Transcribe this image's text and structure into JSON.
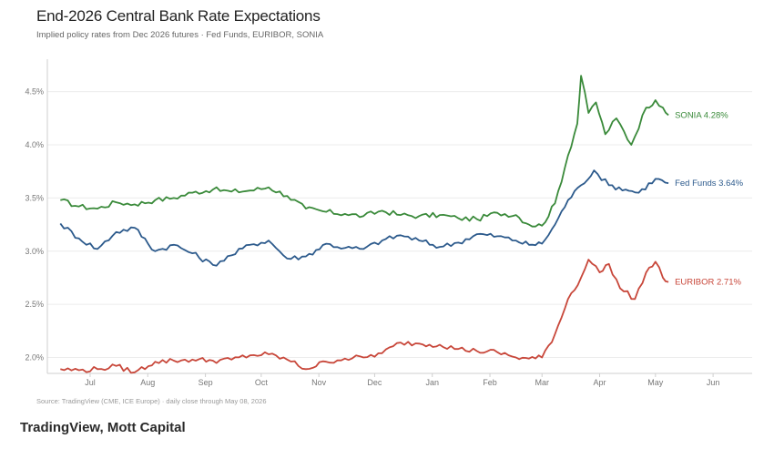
{
  "header": {
    "title": "End-2026 Central Bank Rate Expectations",
    "subtitle": "Implied policy rates from Dec 2026 futures · Fed Funds, EURIBOR, SONIA"
  },
  "footer": {
    "source": "Source: TradingView (CME, ICE Europe)  ·  daily close through May 08, 2026",
    "credit": "TradingView, Mott Capital"
  },
  "chart_data": {
    "type": "line",
    "title": "End-2026 Central Bank Rate Expectations",
    "subtitle": "Implied policy rates from Dec 2026 futures · Fed Funds, EURIBOR, SONIA",
    "x_ticks": [
      "Jul",
      "Aug",
      "Sep",
      "Oct",
      "Nov",
      "Dec",
      "Jan",
      "Feb",
      "Mar",
      "Apr",
      "May",
      "Jun"
    ],
    "y_ticks": [
      "2.0%",
      "2.5%",
      "3.0%",
      "3.5%",
      "4.0%",
      "4.5%"
    ],
    "ylim": [
      1.85,
      4.72
    ],
    "y_tick_values": [
      2.0,
      2.5,
      3.0,
      3.5,
      4.0,
      4.5
    ],
    "grid": true,
    "legend": "end-of-line labels",
    "series": [
      {
        "name": "SONIA",
        "end_label": "SONIA  4.28%",
        "color": "#3a8a3a",
        "points": [
          [
            "2025-06-15",
            3.48
          ],
          [
            "2025-06-25",
            3.42
          ],
          [
            "2025-07-05",
            3.4
          ],
          [
            "2025-07-15",
            3.46
          ],
          [
            "2025-07-25",
            3.44
          ],
          [
            "2025-08-05",
            3.48
          ],
          [
            "2025-08-15",
            3.5
          ],
          [
            "2025-08-25",
            3.55
          ],
          [
            "2025-09-05",
            3.58
          ],
          [
            "2025-09-15",
            3.56
          ],
          [
            "2025-09-25",
            3.57
          ],
          [
            "2025-10-05",
            3.6
          ],
          [
            "2025-10-15",
            3.52
          ],
          [
            "2025-10-25",
            3.4
          ],
          [
            "2025-11-05",
            3.37
          ],
          [
            "2025-11-15",
            3.35
          ],
          [
            "2025-11-25",
            3.33
          ],
          [
            "2025-12-05",
            3.38
          ],
          [
            "2025-12-15",
            3.34
          ],
          [
            "2025-12-25",
            3.33
          ],
          [
            "2026-01-05",
            3.34
          ],
          [
            "2026-01-15",
            3.31
          ],
          [
            "2026-01-25",
            3.3
          ],
          [
            "2026-02-05",
            3.36
          ],
          [
            "2026-02-15",
            3.34
          ],
          [
            "2026-02-22",
            3.25
          ],
          [
            "2026-03-01",
            3.24
          ],
          [
            "2026-03-08",
            3.45
          ],
          [
            "2026-03-15",
            3.9
          ],
          [
            "2026-03-20",
            4.2
          ],
          [
            "2026-03-22",
            4.65
          ],
          [
            "2026-03-26",
            4.3
          ],
          [
            "2026-03-30",
            4.4
          ],
          [
            "2026-04-04",
            4.1
          ],
          [
            "2026-04-10",
            4.25
          ],
          [
            "2026-04-18",
            4.0
          ],
          [
            "2026-04-26",
            4.35
          ],
          [
            "2026-05-01",
            4.42
          ],
          [
            "2026-05-05",
            4.35
          ],
          [
            "2026-05-08",
            4.28
          ]
        ]
      },
      {
        "name": "Fed Funds",
        "end_label": "Fed Funds  3.64%",
        "color": "#2c5a8c",
        "points": [
          [
            "2025-06-15",
            3.26
          ],
          [
            "2025-06-25",
            3.12
          ],
          [
            "2025-07-05",
            3.02
          ],
          [
            "2025-07-15",
            3.18
          ],
          [
            "2025-07-25",
            3.22
          ],
          [
            "2025-08-05",
            3.0
          ],
          [
            "2025-08-15",
            3.06
          ],
          [
            "2025-08-25",
            2.98
          ],
          [
            "2025-09-05",
            2.87
          ],
          [
            "2025-09-15",
            2.96
          ],
          [
            "2025-09-25",
            3.06
          ],
          [
            "2025-10-05",
            3.1
          ],
          [
            "2025-10-15",
            2.93
          ],
          [
            "2025-10-25",
            2.95
          ],
          [
            "2025-11-05",
            3.07
          ],
          [
            "2025-11-15",
            3.03
          ],
          [
            "2025-11-25",
            3.02
          ],
          [
            "2025-12-05",
            3.1
          ],
          [
            "2025-12-15",
            3.15
          ],
          [
            "2025-12-25",
            3.1
          ],
          [
            "2026-01-05",
            3.04
          ],
          [
            "2026-01-15",
            3.08
          ],
          [
            "2026-01-25",
            3.16
          ],
          [
            "2026-02-05",
            3.14
          ],
          [
            "2026-02-15",
            3.1
          ],
          [
            "2026-02-22",
            3.06
          ],
          [
            "2026-03-01",
            3.07
          ],
          [
            "2026-03-08",
            3.25
          ],
          [
            "2026-03-15",
            3.48
          ],
          [
            "2026-03-22",
            3.62
          ],
          [
            "2026-03-29",
            3.76
          ],
          [
            "2026-04-06",
            3.62
          ],
          [
            "2026-04-15",
            3.58
          ],
          [
            "2026-04-22",
            3.55
          ],
          [
            "2026-05-01",
            3.68
          ],
          [
            "2026-05-08",
            3.64
          ]
        ]
      },
      {
        "name": "EURIBOR",
        "end_label": "EURIBOR  2.71%",
        "color": "#c8473a",
        "points": [
          [
            "2025-06-15",
            1.89
          ],
          [
            "2025-06-25",
            1.88
          ],
          [
            "2025-07-05",
            1.89
          ],
          [
            "2025-07-15",
            1.92
          ],
          [
            "2025-07-25",
            1.86
          ],
          [
            "2025-08-05",
            1.96
          ],
          [
            "2025-08-15",
            1.97
          ],
          [
            "2025-08-25",
            1.98
          ],
          [
            "2025-09-05",
            1.97
          ],
          [
            "2025-09-15",
            1.98
          ],
          [
            "2025-09-25",
            2.02
          ],
          [
            "2025-10-05",
            2.03
          ],
          [
            "2025-10-15",
            1.98
          ],
          [
            "2025-10-25",
            1.89
          ],
          [
            "2025-11-05",
            1.96
          ],
          [
            "2025-11-15",
            1.99
          ],
          [
            "2025-11-25",
            2.0
          ],
          [
            "2025-12-05",
            2.04
          ],
          [
            "2025-12-15",
            2.14
          ],
          [
            "2025-12-25",
            2.13
          ],
          [
            "2026-01-05",
            2.12
          ],
          [
            "2026-01-15",
            2.08
          ],
          [
            "2026-01-25",
            2.06
          ],
          [
            "2026-02-05",
            2.05
          ],
          [
            "2026-02-15",
            2.0
          ],
          [
            "2026-02-22",
            1.99
          ],
          [
            "2026-03-01",
            2.0
          ],
          [
            "2026-03-08",
            2.22
          ],
          [
            "2026-03-15",
            2.55
          ],
          [
            "2026-03-22",
            2.75
          ],
          [
            "2026-03-26",
            2.92
          ],
          [
            "2026-04-01",
            2.8
          ],
          [
            "2026-04-06",
            2.88
          ],
          [
            "2026-04-12",
            2.65
          ],
          [
            "2026-04-20",
            2.55
          ],
          [
            "2026-04-26",
            2.8
          ],
          [
            "2026-05-01",
            2.9
          ],
          [
            "2026-05-05",
            2.75
          ],
          [
            "2026-05-08",
            2.71
          ]
        ]
      }
    ]
  }
}
